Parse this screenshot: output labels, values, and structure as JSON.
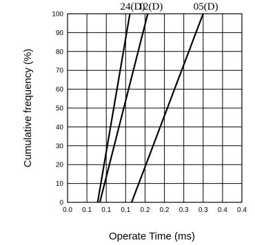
{
  "chart_data": {
    "type": "line",
    "xlabel": "Operate Time (ms)",
    "ylabel": "Cumulative frequency (%)",
    "xlim": [
      0.0,
      0.4
    ],
    "ylim": [
      0,
      100
    ],
    "x_ticks": [
      "0.0",
      "0.1",
      "0.1",
      "0.1",
      "0.2",
      "0.2",
      "0.3",
      "0.3",
      "0.4",
      "0.4"
    ],
    "y_ticks": [
      "0",
      "10",
      "20",
      "30",
      "40",
      "50",
      "60",
      "70",
      "80",
      "90",
      "100"
    ],
    "grid": true,
    "series": [
      {
        "name": "24(D)",
        "x": [
          0.069,
          0.143
        ],
        "y": [
          0,
          100
        ]
      },
      {
        "name": "12(D)",
        "x": [
          0.074,
          0.184
        ],
        "y": [
          0,
          100
        ]
      },
      {
        "name": "05(D)",
        "x": [
          0.147,
          0.311
        ],
        "y": [
          0,
          100
        ]
      }
    ]
  }
}
